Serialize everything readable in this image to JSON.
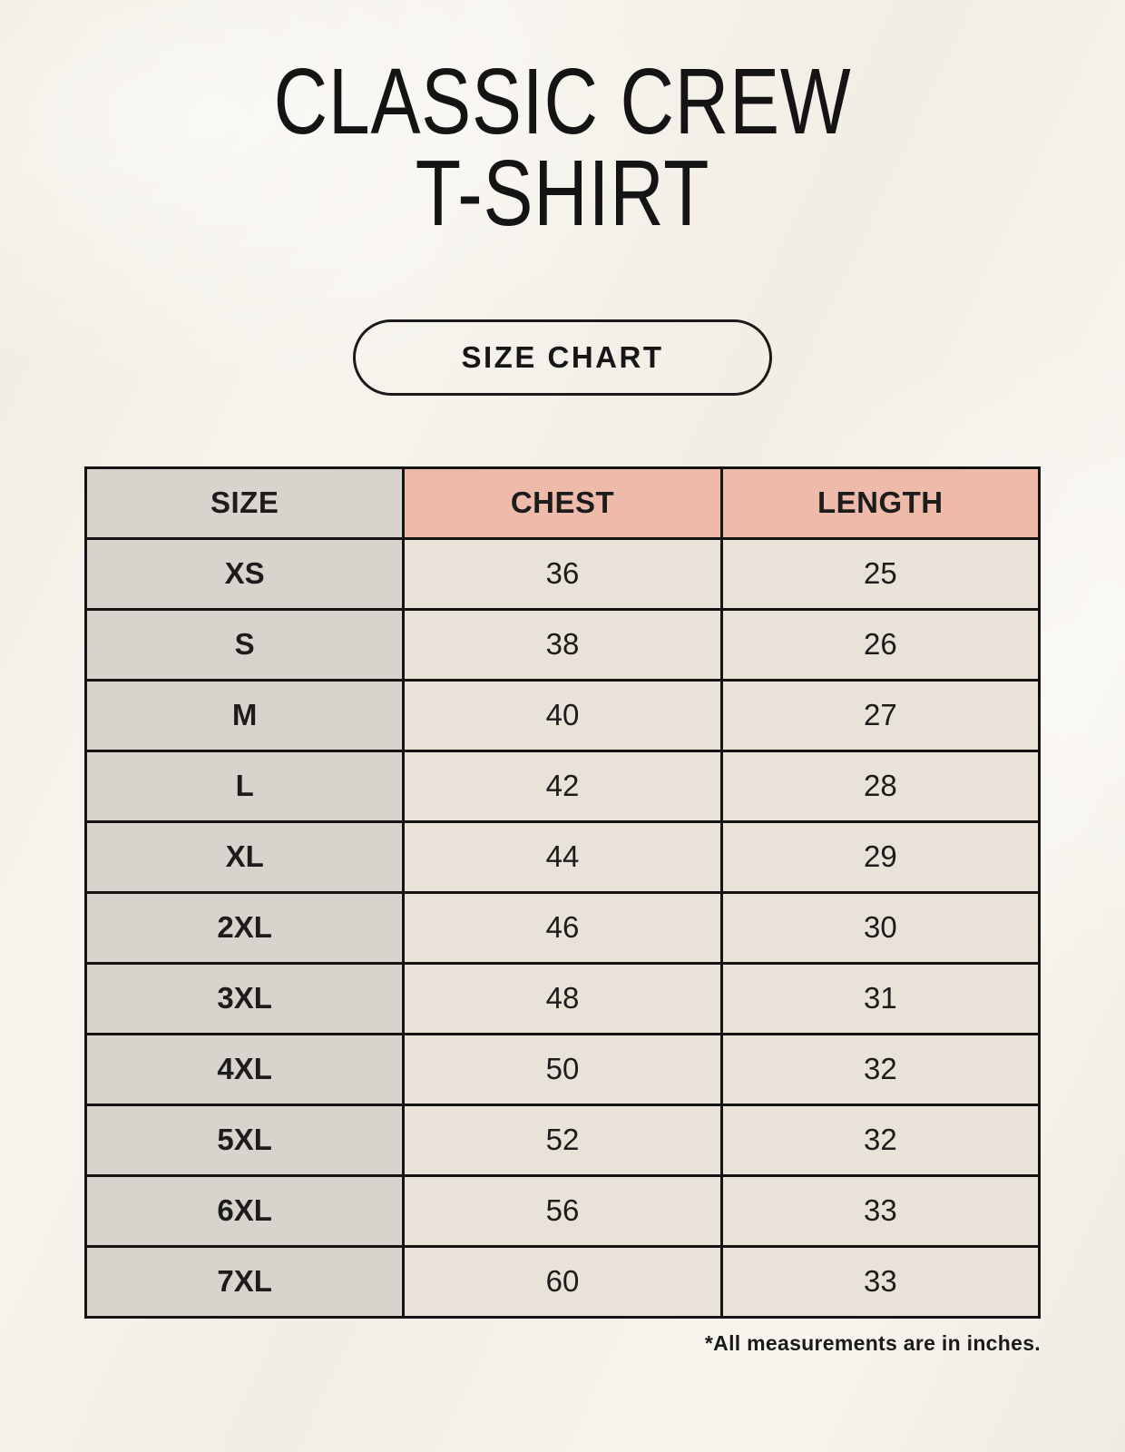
{
  "header": {
    "title_line1": "CLASSIC CREW",
    "title_line2": "T-SHIRT",
    "badge_label": "SIZE CHART"
  },
  "chart_data": {
    "type": "table",
    "title": "CLASSIC CREW T-SHIRT",
    "subtitle": "SIZE CHART",
    "columns": [
      "SIZE",
      "CHEST",
      "LENGTH"
    ],
    "rows": [
      [
        "XS",
        "36",
        "25"
      ],
      [
        "S",
        "38",
        "26"
      ],
      [
        "M",
        "40",
        "27"
      ],
      [
        "L",
        "42",
        "28"
      ],
      [
        "XL",
        "44",
        "29"
      ],
      [
        "2XL",
        "46",
        "30"
      ],
      [
        "3XL",
        "48",
        "31"
      ],
      [
        "4XL",
        "50",
        "32"
      ],
      [
        "5XL",
        "52",
        "32"
      ],
      [
        "6XL",
        "56",
        "33"
      ],
      [
        "7XL",
        "60",
        "33"
      ]
    ],
    "footnote": "*All measurements are in inches.",
    "layout_hints": {
      "size_column_highlight": true,
      "accent_header_columns": [
        "CHEST",
        "LENGTH"
      ]
    }
  },
  "colors": {
    "page_background": "#f4f1e9",
    "accent_header": "#eebbaa",
    "size_column": "#d9d3ce",
    "data_cell": "#e9e2d8",
    "table_border": "#141414",
    "text": "#1c1c1c"
  }
}
